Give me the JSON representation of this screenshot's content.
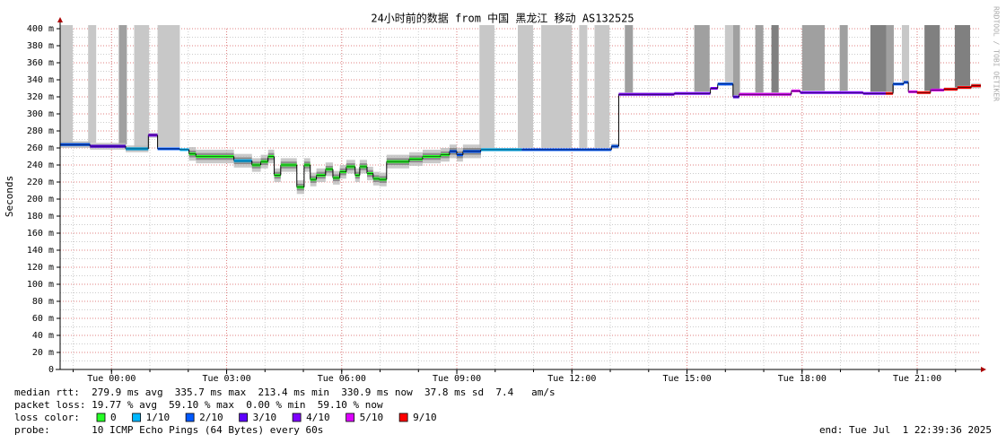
{
  "chart_data": {
    "type": "smokeping",
    "title": "24小时前的数据 from 中国 黑龙江 移动 AS132525",
    "y_label": "Seconds",
    "watermark": "RRDTOOL / TOBI OETIKER",
    "xlim": [
      -1.34,
      22.66
    ],
    "ylim": [
      0,
      400
    ],
    "xticks": [
      {
        "value": 0,
        "label": "Tue 00:00"
      },
      {
        "value": 3,
        "label": "Tue 03:00"
      },
      {
        "value": 6,
        "label": "Tue 06:00"
      },
      {
        "value": 9,
        "label": "Tue 09:00"
      },
      {
        "value": 12,
        "label": "Tue 12:00"
      },
      {
        "value": 15,
        "label": "Tue 15:00"
      },
      {
        "value": 18,
        "label": "Tue 18:00"
      },
      {
        "value": 21,
        "label": "Tue 21:00"
      }
    ],
    "yticks": [
      0,
      {
        "value": 20,
        "label": "20 m"
      },
      {
        "value": 40,
        "label": "40 m"
      },
      {
        "value": 60,
        "label": "60 m"
      },
      {
        "value": 80,
        "label": "80 m"
      },
      {
        "value": 100,
        "label": "100 m"
      },
      {
        "value": 120,
        "label": "120 m"
      },
      {
        "value": 140,
        "label": "140 m"
      },
      {
        "value": 160,
        "label": "160 m"
      },
      {
        "value": 180,
        "label": "180 m"
      },
      {
        "value": 200,
        "label": "200 m"
      },
      {
        "value": 220,
        "label": "220 m"
      },
      {
        "value": 240,
        "label": "240 m"
      },
      {
        "value": 260,
        "label": "260 m"
      },
      {
        "value": 280,
        "label": "280 m"
      },
      {
        "value": 300,
        "label": "300 m"
      },
      {
        "value": 320,
        "label": "320 m"
      },
      {
        "value": 340,
        "label": "340 m"
      },
      {
        "value": 360,
        "label": "360 m"
      },
      {
        "value": 380,
        "label": "380 m"
      },
      {
        "value": 400,
        "label": "400 m"
      }
    ],
    "grid": true,
    "x": [
      -1.34,
      -0.56,
      0.37,
      0.96,
      1.2,
      1.78,
      2.02,
      2.2,
      3.19,
      3.66,
      3.89,
      4.08,
      4.24,
      4.41,
      4.83,
      5.02,
      5.18,
      5.34,
      5.58,
      5.77,
      5.95,
      6.12,
      6.35,
      6.47,
      6.66,
      6.82,
      6.98,
      7.17,
      7.76,
      8.11,
      8.58,
      8.81,
      9.0,
      9.16,
      9.63,
      10.69,
      13.03,
      13.22,
      14.67,
      15.61,
      15.8,
      16.2,
      16.36,
      17.72,
      17.95,
      19.59,
      20.18,
      20.37,
      20.65,
      20.77,
      21.0,
      21.35,
      21.7,
      22.05,
      22.41
    ],
    "median": [
      264,
      262,
      259,
      275,
      259,
      258,
      253,
      250,
      245,
      240,
      244,
      250,
      228,
      240,
      214,
      240,
      223,
      228,
      235,
      225,
      232,
      238,
      228,
      238,
      230,
      224,
      223,
      244,
      247,
      250,
      252,
      256,
      252,
      256,
      258,
      258,
      262,
      323,
      324,
      330,
      335,
      320,
      323,
      327,
      325,
      324,
      324,
      335,
      337,
      326,
      325,
      328,
      329,
      331,
      333
    ],
    "spread": [
      4,
      4,
      4,
      3,
      1,
      1,
      8,
      8,
      8,
      8,
      8,
      8,
      8,
      8,
      8,
      8,
      8,
      8,
      8,
      8,
      8,
      8,
      8,
      8,
      8,
      8,
      8,
      8,
      8,
      8,
      8,
      8,
      8,
      8,
      2,
      1,
      3,
      2,
      1,
      1,
      2,
      2,
      2,
      1,
      1,
      1,
      1,
      1,
      1,
      1,
      1,
      1,
      2,
      2,
      3
    ],
    "loss": [
      2,
      3,
      1,
      4,
      2,
      1,
      0,
      0,
      1,
      0,
      0,
      0,
      0,
      0,
      0,
      0,
      0,
      0,
      0,
      0,
      0,
      0,
      0,
      0,
      0,
      0,
      0,
      0,
      0,
      0,
      0,
      2,
      2,
      2,
      1,
      2,
      2,
      4,
      4,
      4,
      2,
      3,
      5,
      5,
      4,
      4,
      9,
      2,
      2,
      5,
      9,
      5,
      9,
      9,
      9
    ],
    "loss_bars": [
      {
        "x": [
          -1.34,
          -1.01
        ],
        "color": "#c8c8c8"
      },
      {
        "x": [
          -0.61,
          -0.4
        ],
        "color": "#c8c8c8"
      },
      {
        "x": [
          0.19,
          0.4
        ],
        "color": "#a0a0a0"
      },
      {
        "x": [
          0.59,
          0.98
        ],
        "color": "#c8c8c8"
      },
      {
        "x": [
          1.2,
          1.78
        ],
        "color": "#c8c8c8"
      },
      {
        "x": [
          9.59,
          9.98
        ],
        "color": "#c8c8c8"
      },
      {
        "x": [
          10.59,
          10.99
        ],
        "color": "#c8c8c8"
      },
      {
        "x": [
          11.2,
          12.0
        ],
        "color": "#c8c8c8"
      },
      {
        "x": [
          12.19,
          12.4
        ],
        "color": "#c8c8c8"
      },
      {
        "x": [
          12.59,
          12.98
        ],
        "color": "#c8c8c8"
      },
      {
        "x": [
          13.38,
          13.59
        ],
        "color": "#a0a0a0"
      },
      {
        "x": [
          15.19,
          15.59
        ],
        "color": "#a0a0a0"
      },
      {
        "x": [
          15.99,
          16.2
        ],
        "color": "#c8c8c8"
      },
      {
        "x": [
          16.2,
          16.38
        ],
        "color": "#a0a0a0"
      },
      {
        "x": [
          16.78,
          16.99
        ],
        "color": "#a0a0a0"
      },
      {
        "x": [
          17.2,
          17.39
        ],
        "color": "#808080"
      },
      {
        "x": [
          18.0,
          18.59
        ],
        "color": "#a0a0a0"
      },
      {
        "x": [
          18.98,
          19.19
        ],
        "color": "#a0a0a0"
      },
      {
        "x": [
          19.78,
          20.2
        ],
        "color": "#808080"
      },
      {
        "x": [
          20.2,
          20.39
        ],
        "color": "#a0a0a0"
      },
      {
        "x": [
          20.6,
          20.79
        ],
        "color": "#c8c8c8"
      },
      {
        "x": [
          21.19,
          21.59
        ],
        "color": "#808080"
      },
      {
        "x": [
          21.98,
          22.38
        ],
        "color": "#808080"
      }
    ],
    "loss_legend_label": "loss color:",
    "loss_colors": [
      {
        "value": 0,
        "label": "0",
        "color": "#26ff26"
      },
      {
        "value": 1,
        "label": "1/10",
        "color": "#00b8ff"
      },
      {
        "value": 2,
        "label": "2/10",
        "color": "#0059ff"
      },
      {
        "value": 3,
        "label": "3/10",
        "color": "#5e00ff"
      },
      {
        "value": 4,
        "label": "4/10",
        "color": "#7e00ff"
      },
      {
        "value": 5,
        "label": "5/10",
        "color": "#dd00ff"
      },
      {
        "value": 9,
        "label": "9/10",
        "color": "#ff0000"
      }
    ],
    "stats": [
      "median rtt:  279.9 ms avg  335.7 ms max  213.4 ms min  330.9 ms now  37.8 ms sd  7.4   am/s",
      "packet loss: 19.77 % avg  59.10 % max  0.00 % min  59.10 % now"
    ],
    "probe": "probe:       10 ICMP Echo Pings (64 Bytes) every 60s",
    "end": "end: Tue Jul  1 22:39:36 2025"
  }
}
